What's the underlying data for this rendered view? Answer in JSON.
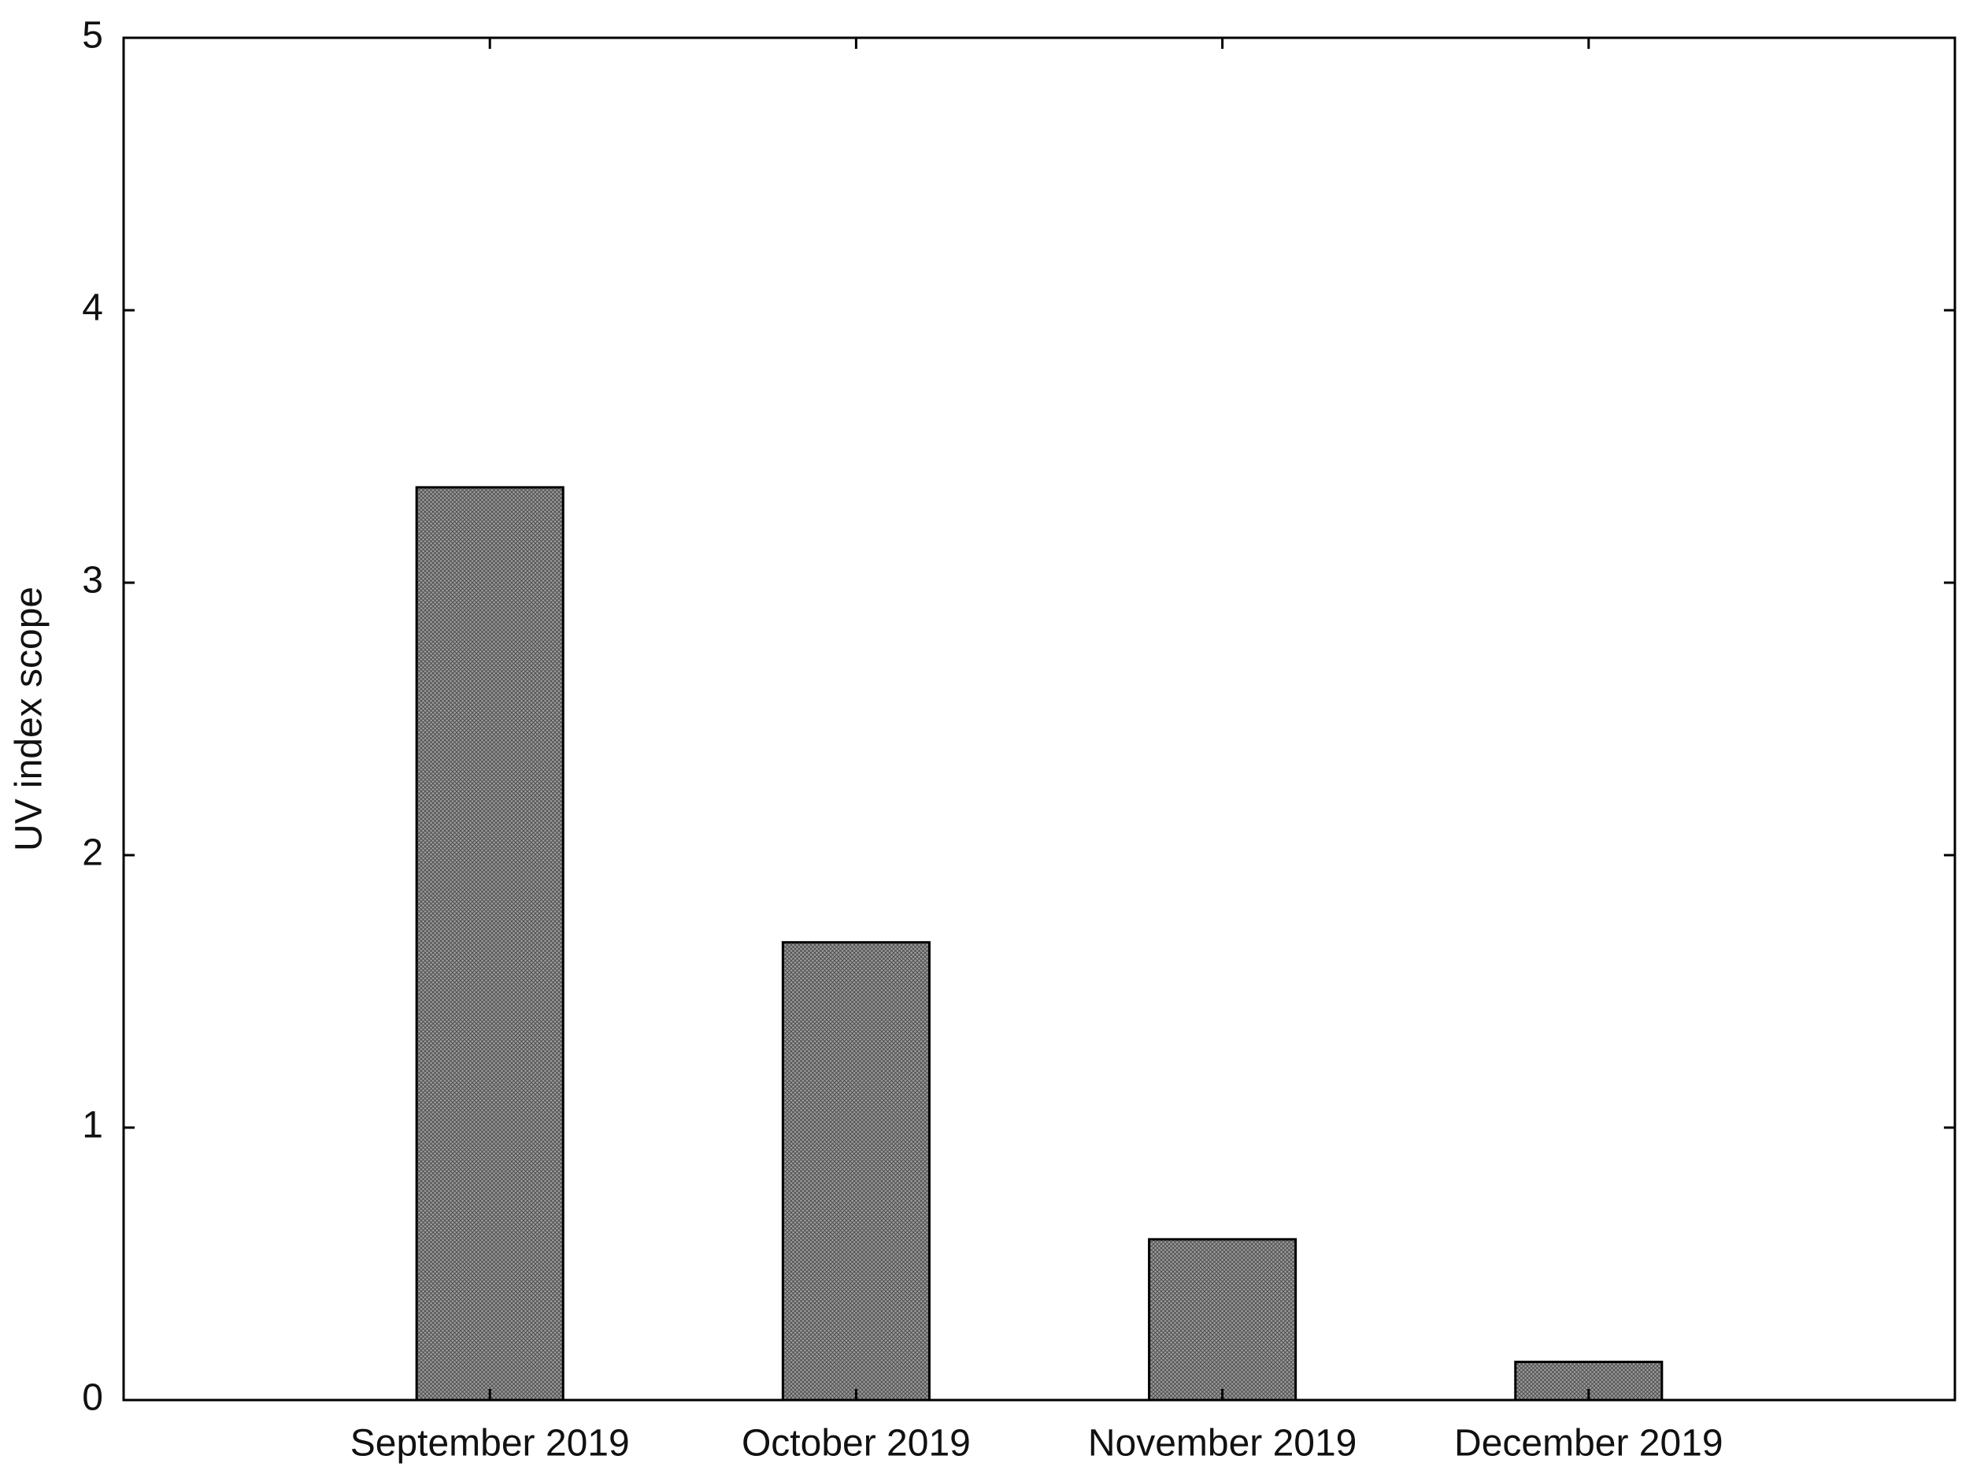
{
  "chart_data": {
    "type": "bar",
    "y_label": "UV index scope",
    "categories": [
      "September 2019",
      "October 2019",
      "November 2019",
      "December 2019"
    ],
    "values": [
      3.35,
      1.68,
      0.59,
      0.14
    ],
    "color": "#9a9a9a",
    "ylim": [
      0,
      5
    ],
    "yticks": [
      0,
      1,
      2,
      3,
      4,
      5
    ],
    "grid": false
  }
}
